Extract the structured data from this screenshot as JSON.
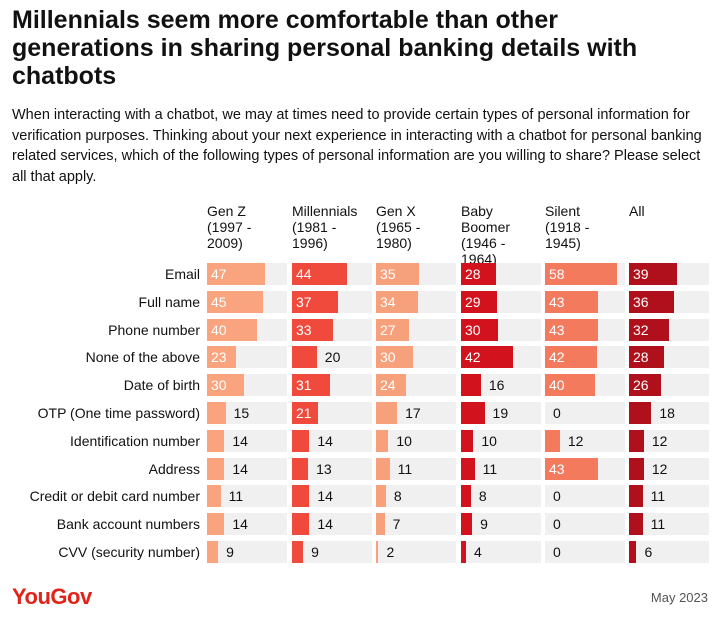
{
  "chart_data": {
    "type": "bar",
    "title": "Millennials seem more comfortable than other generations in sharing personal banking details with chatbots",
    "subtitle": "When interacting with a chatbot, we may at times need to provide certain types of personal information for verification purposes. Thinking about your next experience in interacting with a chatbot for personal banking related services, which of the following types of personal information are you willing to share? Please select all that apply.",
    "categories": [
      "Email",
      "Full name",
      "Phone number",
      "None of the above",
      "Date of birth",
      "OTP (One time password)",
      "Identification number",
      "Address",
      "Credit or debit card number",
      "Bank account numbers",
      "CVV (security number)"
    ],
    "series": [
      {
        "name": "Gen Z (1997 - 2009)",
        "color": "#f9a47e",
        "values": [
          47,
          45,
          40,
          23,
          30,
          15,
          14,
          14,
          11,
          14,
          9
        ]
      },
      {
        "name": "Millennials (1981 - 1996)",
        "color": "#ef4a3c",
        "values": [
          44,
          37,
          33,
          20,
          31,
          21,
          14,
          13,
          14,
          14,
          9
        ]
      },
      {
        "name": "Gen X (1965 - 1980)",
        "color": "#f7a07c",
        "values": [
          35,
          34,
          27,
          30,
          24,
          17,
          10,
          11,
          8,
          7,
          2
        ]
      },
      {
        "name": "Baby Boomer (1946 - 1964)",
        "color": "#d2121c",
        "values": [
          28,
          29,
          30,
          42,
          16,
          19,
          10,
          11,
          8,
          9,
          4
        ]
      },
      {
        "name": "Silent (1918 - 1945)",
        "color": "#f47a5e",
        "values": [
          58,
          43,
          43,
          42,
          40,
          0,
          12,
          43,
          0,
          0,
          0
        ]
      },
      {
        "name": "All",
        "color": "#b0101c",
        "values": [
          39,
          36,
          32,
          28,
          26,
          18,
          12,
          12,
          11,
          11,
          6
        ]
      }
    ],
    "source": "YouGov",
    "date": "May 2023"
  }
}
